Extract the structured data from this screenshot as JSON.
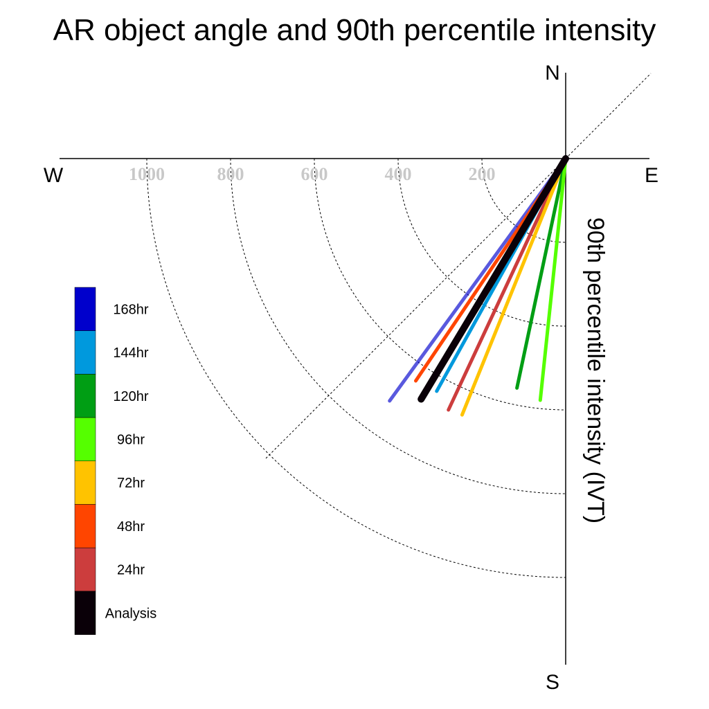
{
  "chart_data": {
    "type": "polar-vector",
    "title": "AR object angle and 90th percentile intensity",
    "axis_label": "90th percentile intensity (IVT)",
    "compass": {
      "north": "N",
      "east": "E",
      "south": "S",
      "west": "W"
    },
    "radial_ticks": [
      {
        "value": 200,
        "label": "200"
      },
      {
        "value": 400,
        "label": "400"
      },
      {
        "value": 600,
        "label": "600"
      },
      {
        "value": 800,
        "label": "800"
      },
      {
        "value": 1000,
        "label": "1000"
      }
    ],
    "radial_range": [
      0,
      1200
    ],
    "grid": true,
    "legend_position": "left",
    "series": [
      {
        "name": "Analysis",
        "color": "#0a0008",
        "angle_deg": 211,
        "intensity": 670,
        "width": 10
      },
      {
        "name": "24hr",
        "color": "#cc3d3d",
        "angle_deg": 205,
        "intensity": 662,
        "width": 5
      },
      {
        "name": "48hr",
        "color": "#ff4500",
        "angle_deg": 214,
        "intensity": 640,
        "width": 5
      },
      {
        "name": "72hr",
        "color": "#ffc300",
        "angle_deg": 202,
        "intensity": 660,
        "width": 5
      },
      {
        "name": "96hr",
        "color": "#55ff00",
        "angle_deg": 186,
        "intensity": 580,
        "width": 5
      },
      {
        "name": "120hr",
        "color": "#009e14",
        "angle_deg": 192,
        "intensity": 560,
        "width": 5
      },
      {
        "name": "144hr",
        "color": "#0099dd",
        "angle_deg": 209,
        "intensity": 635,
        "width": 5
      },
      {
        "name": "168hr",
        "color": "#0000cc",
        "angle_deg": 216,
        "intensity": 715,
        "width": 5,
        "opacity": 0.65
      }
    ],
    "legend_order": [
      "168hr",
      "144hr",
      "120hr",
      "96hr",
      "72hr",
      "48hr",
      "24hr",
      "Analysis"
    ]
  }
}
